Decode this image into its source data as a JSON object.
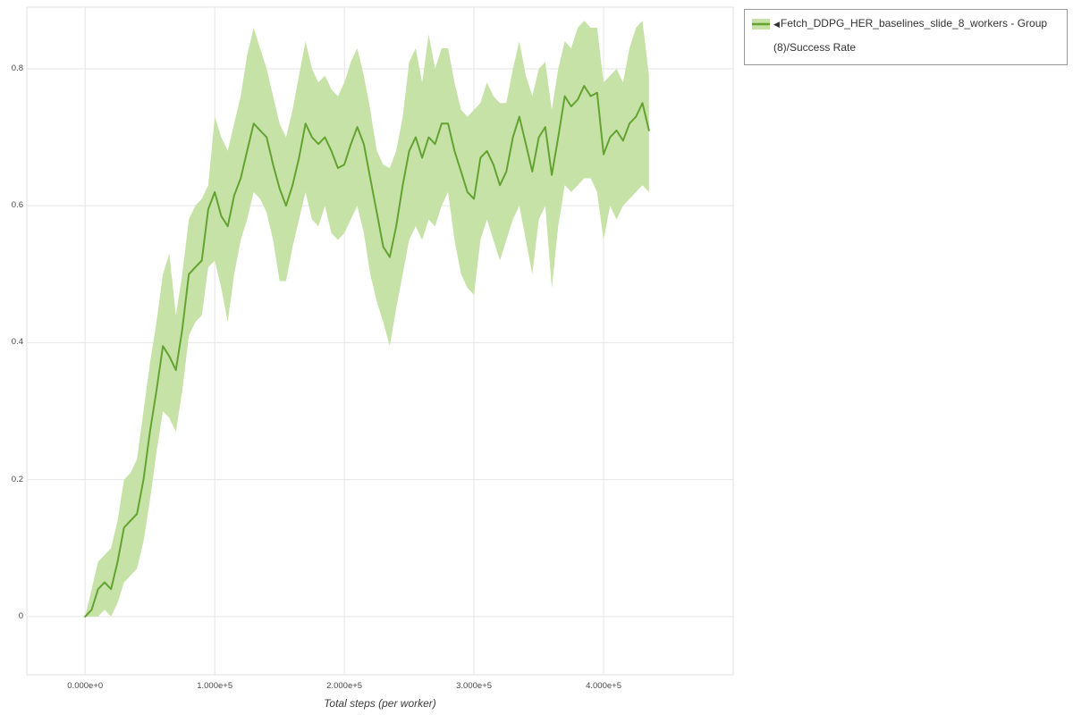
{
  "legend": {
    "collapse_icon": "◀",
    "label": "Fetch_DDPG_HER_baselines_slide_8_workers - Group (8)/Success Rate"
  },
  "axes": {
    "x_label": "Total steps (per worker)",
    "x_ticks": [
      "0.000e+0",
      "1.000e+5",
      "2.000e+5",
      "3.000e+5",
      "4.000e+5"
    ],
    "y_ticks": [
      "0",
      "0.2",
      "0.4",
      "0.6",
      "0.8"
    ]
  },
  "colors": {
    "line": "#63a331",
    "band": "#c6e2a6",
    "grid": "#e5e5e5",
    "frame": "#e0e0e0",
    "tick_text": "#4a4a4a"
  },
  "chart_data": {
    "type": "line",
    "title": "",
    "xlabel": "Total steps (per worker)",
    "ylabel": "",
    "legend_position": "top-right-outside",
    "grid": true,
    "xlim": [
      -45000,
      500000
    ],
    "ylim": [
      -0.085,
      0.89
    ],
    "x_tick_values": [
      0,
      100000,
      200000,
      300000,
      400000
    ],
    "y_tick_values": [
      0,
      0.2,
      0.4,
      0.6,
      0.8
    ],
    "series": [
      {
        "name": "Fetch_DDPG_HER_baselines_slide_8_workers - Group (8)/Success Rate",
        "x": [
          0,
          5000,
          10000,
          15000,
          20000,
          25000,
          30000,
          35000,
          40000,
          45000,
          50000,
          55000,
          60000,
          65000,
          70000,
          75000,
          80000,
          85000,
          90000,
          95000,
          100000,
          105000,
          110000,
          115000,
          120000,
          125000,
          130000,
          135000,
          140000,
          145000,
          150000,
          155000,
          160000,
          165000,
          170000,
          175000,
          180000,
          185000,
          190000,
          195000,
          200000,
          205000,
          210000,
          215000,
          220000,
          225000,
          230000,
          235000,
          240000,
          245000,
          250000,
          255000,
          260000,
          265000,
          270000,
          275000,
          280000,
          285000,
          290000,
          295000,
          300000,
          305000,
          310000,
          315000,
          320000,
          325000,
          330000,
          335000,
          340000,
          345000,
          350000,
          355000,
          360000,
          365000,
          370000,
          375000,
          380000,
          385000,
          390000,
          395000,
          400000,
          405000,
          410000,
          415000,
          420000,
          425000,
          430000,
          435000
        ],
        "mean": [
          0,
          0.01,
          0.04,
          0.05,
          0.04,
          0.08,
          0.13,
          0.14,
          0.15,
          0.2,
          0.27,
          0.33,
          0.395,
          0.38,
          0.36,
          0.42,
          0.5,
          0.51,
          0.52,
          0.595,
          0.62,
          0.585,
          0.57,
          0.615,
          0.64,
          0.68,
          0.72,
          0.71,
          0.7,
          0.66,
          0.625,
          0.6,
          0.63,
          0.67,
          0.72,
          0.7,
          0.69,
          0.7,
          0.68,
          0.655,
          0.66,
          0.69,
          0.715,
          0.69,
          0.64,
          0.59,
          0.54,
          0.525,
          0.57,
          0.63,
          0.68,
          0.7,
          0.67,
          0.7,
          0.69,
          0.72,
          0.72,
          0.68,
          0.65,
          0.62,
          0.61,
          0.67,
          0.68,
          0.66,
          0.63,
          0.65,
          0.7,
          0.73,
          0.69,
          0.65,
          0.7,
          0.715,
          0.645,
          0.7,
          0.76,
          0.745,
          0.755,
          0.775,
          0.76,
          0.765,
          0.675,
          0.7,
          0.71,
          0.695,
          0.72,
          0.73,
          0.75,
          0.71
        ],
        "lower": [
          0,
          0,
          0,
          0.01,
          0,
          0.02,
          0.05,
          0.06,
          0.07,
          0.11,
          0.17,
          0.24,
          0.3,
          0.29,
          0.27,
          0.33,
          0.41,
          0.43,
          0.44,
          0.51,
          0.52,
          0.48,
          0.43,
          0.5,
          0.55,
          0.58,
          0.62,
          0.61,
          0.59,
          0.55,
          0.49,
          0.49,
          0.54,
          0.58,
          0.62,
          0.58,
          0.57,
          0.6,
          0.56,
          0.55,
          0.56,
          0.58,
          0.6,
          0.56,
          0.5,
          0.46,
          0.43,
          0.395,
          0.45,
          0.5,
          0.55,
          0.57,
          0.55,
          0.58,
          0.57,
          0.6,
          0.62,
          0.55,
          0.5,
          0.48,
          0.47,
          0.55,
          0.58,
          0.55,
          0.52,
          0.55,
          0.58,
          0.6,
          0.55,
          0.5,
          0.58,
          0.6,
          0.48,
          0.57,
          0.63,
          0.62,
          0.63,
          0.64,
          0.64,
          0.62,
          0.55,
          0.6,
          0.58,
          0.6,
          0.61,
          0.62,
          0.63,
          0.62
        ],
        "upper": [
          0,
          0.04,
          0.08,
          0.09,
          0.1,
          0.14,
          0.2,
          0.21,
          0.23,
          0.3,
          0.37,
          0.43,
          0.5,
          0.53,
          0.44,
          0.5,
          0.58,
          0.6,
          0.61,
          0.63,
          0.73,
          0.7,
          0.68,
          0.72,
          0.76,
          0.82,
          0.86,
          0.83,
          0.8,
          0.76,
          0.72,
          0.7,
          0.74,
          0.79,
          0.84,
          0.8,
          0.78,
          0.79,
          0.77,
          0.76,
          0.78,
          0.81,
          0.83,
          0.79,
          0.74,
          0.68,
          0.66,
          0.655,
          0.68,
          0.73,
          0.81,
          0.83,
          0.78,
          0.85,
          0.8,
          0.83,
          0.83,
          0.78,
          0.74,
          0.73,
          0.74,
          0.75,
          0.78,
          0.76,
          0.75,
          0.75,
          0.8,
          0.84,
          0.79,
          0.76,
          0.8,
          0.81,
          0.74,
          0.8,
          0.84,
          0.83,
          0.86,
          0.87,
          0.86,
          0.86,
          0.78,
          0.79,
          0.8,
          0.78,
          0.83,
          0.86,
          0.87,
          0.79
        ]
      }
    ]
  }
}
